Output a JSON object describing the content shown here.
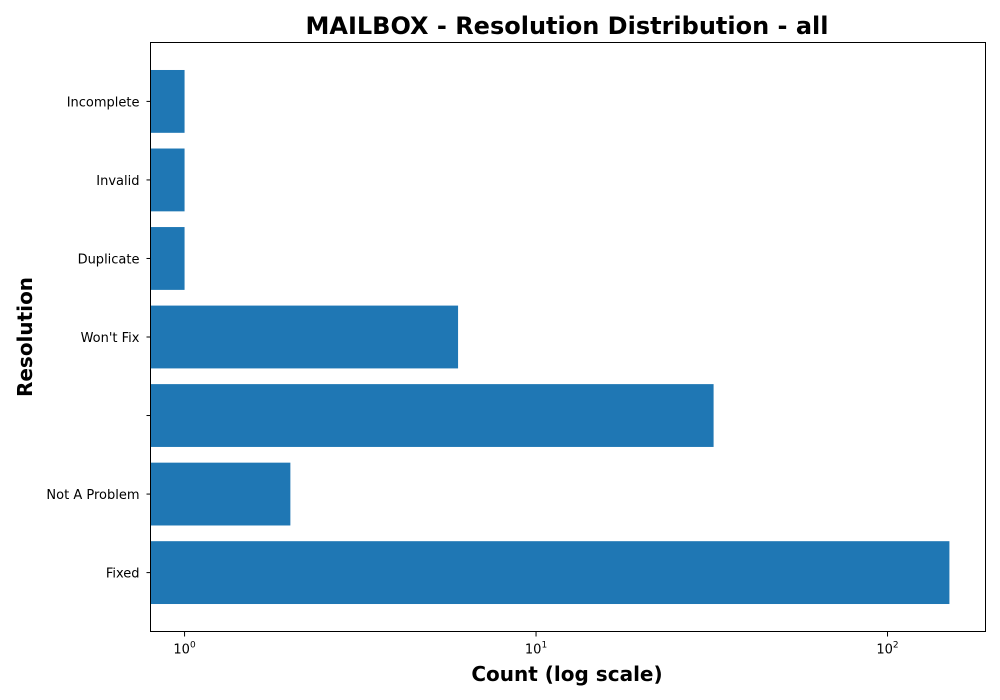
{
  "chart_data": {
    "type": "bar",
    "orientation": "horizontal",
    "title": "MAILBOX - Resolution Distribution - all",
    "xlabel": "Count (log scale)",
    "ylabel": "Resolution",
    "x_scale": "log",
    "xlim": [
      0.8,
      190
    ],
    "categories": [
      "Fixed",
      "Not A Problem",
      "",
      "Won't Fix",
      "Duplicate",
      "Invalid",
      "Incomplete"
    ],
    "values": [
      150,
      2,
      32,
      6,
      1,
      1,
      1
    ],
    "x_ticks": [
      {
        "value": 1,
        "base": "10",
        "exp": "0"
      },
      {
        "value": 10,
        "base": "10",
        "exp": "1"
      },
      {
        "value": 100,
        "base": "10",
        "exp": "2"
      }
    ],
    "grid": false,
    "bar_color": "#1f77b4"
  }
}
